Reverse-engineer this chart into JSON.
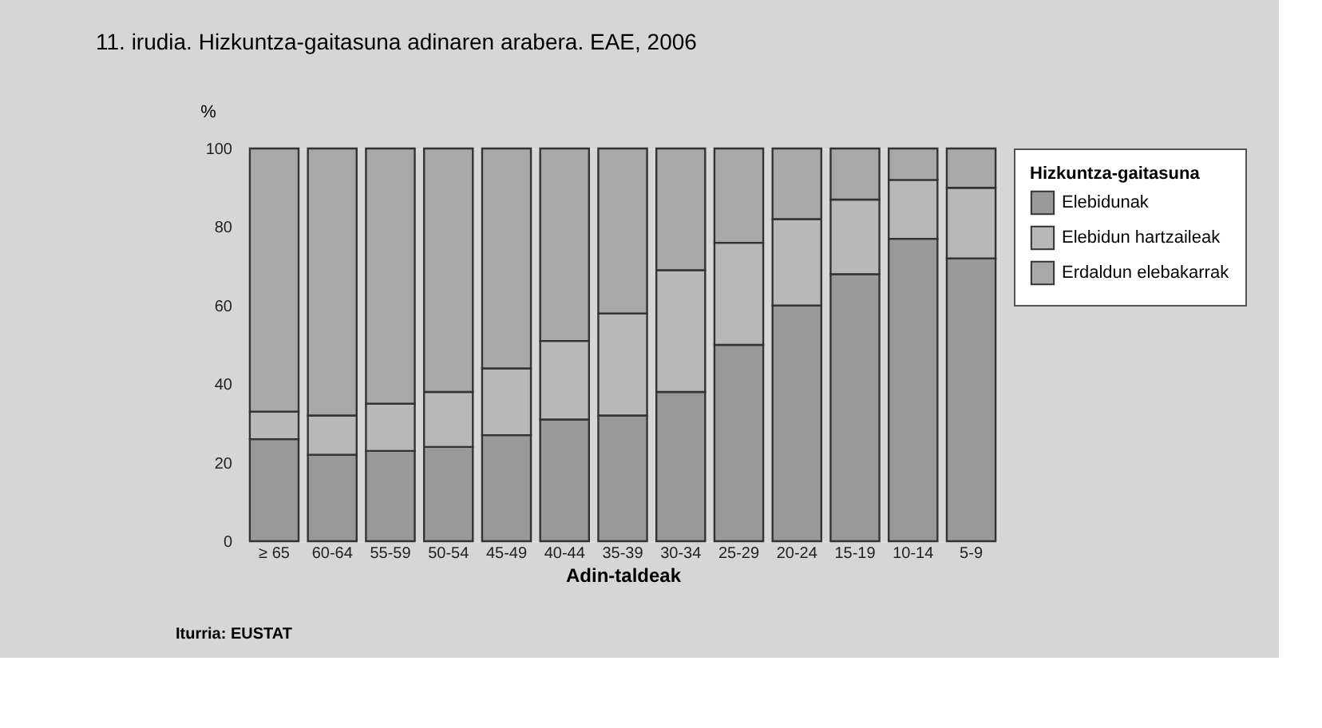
{
  "chart_data": {
    "type": "bar",
    "stacked": true,
    "title": "11. irudia. Hizkuntza-gaitasuna adinaren arabera. EAE, 2006",
    "ylabel": "%",
    "xlabel": "Adin-taldeak",
    "legend_title": "Hizkuntza-gaitasuna",
    "legend": "right",
    "grid": false,
    "annotations": [
      "Iturria: EUSTAT"
    ],
    "categories": [
      "≥ 65",
      "60-64",
      "55-59",
      "50-54",
      "45-49",
      "40-44",
      "35-39",
      "30-34",
      "25-29",
      "20-24",
      "15-19",
      "10-14",
      "5-9"
    ],
    "ylim": [
      0,
      100
    ],
    "yticks": [
      0,
      20,
      40,
      60,
      80,
      100
    ],
    "series": [
      {
        "name": "Elebidunak",
        "color": "#999999",
        "values": [
          26,
          22,
          23,
          24,
          27,
          31,
          32,
          38,
          50,
          60,
          68,
          77,
          72
        ]
      },
      {
        "name": "Elebidun hartzaileak",
        "color": "#b8b8b8",
        "values": [
          7,
          10,
          12,
          14,
          17,
          20,
          26,
          31,
          26,
          22,
          19,
          15,
          18
        ]
      },
      {
        "name": "Erdaldun elebakarrak",
        "color": "#a8a8a8",
        "values": [
          67,
          68,
          65,
          62,
          56,
          49,
          42,
          31,
          24,
          18,
          13,
          8,
          10
        ]
      }
    ]
  }
}
